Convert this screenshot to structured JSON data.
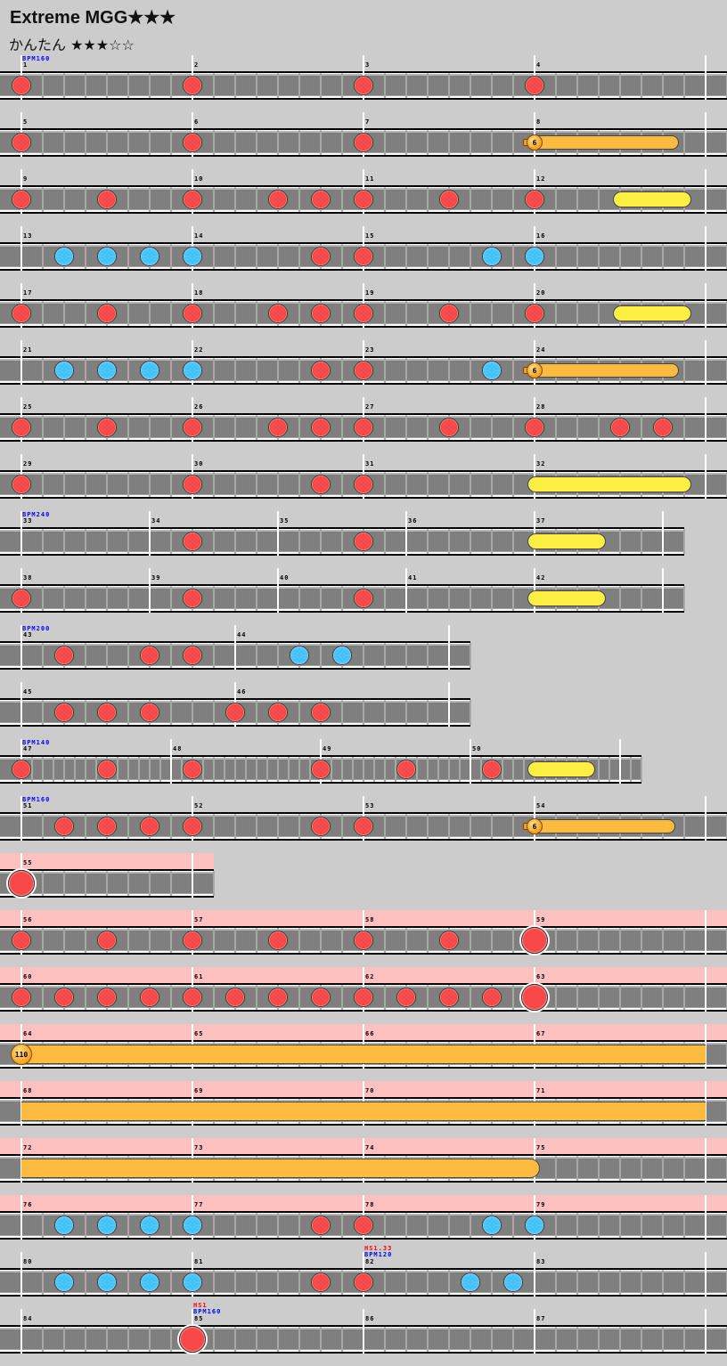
{
  "header": {
    "title": "Extreme MGG★★★",
    "subtitle": "かんたん ★★★☆☆"
  },
  "colors": {
    "background": "#cccccc",
    "gogo": "#ffc0c0",
    "don": "#f84848",
    "ka": "#48c4f8",
    "roll": "#ffee44",
    "balloon": "#ffbb40",
    "bpm_text": "#0000ff",
    "hs_text": "#ff0000"
  },
  "rows": [
    {
      "measures": [
        {
          "n": "1",
          "at": 0,
          "bpm": "BPM160"
        },
        {
          "n": "2",
          "at": 8
        },
        {
          "n": "3",
          "at": 16
        },
        {
          "n": "4",
          "at": 24
        }
      ],
      "end": 32,
      "len": 33,
      "notes": [
        {
          "t": "don",
          "at": 0
        },
        {
          "t": "don",
          "at": 8
        },
        {
          "t": "don",
          "at": 16
        },
        {
          "t": "don",
          "at": 24
        }
      ]
    },
    {
      "measures": [
        {
          "n": "5",
          "at": 0
        },
        {
          "n": "6",
          "at": 8
        },
        {
          "n": "7",
          "at": 16
        },
        {
          "n": "8",
          "at": 24
        }
      ],
      "end": 32,
      "len": 33,
      "notes": [
        {
          "t": "don",
          "at": 0
        },
        {
          "t": "don",
          "at": 8
        },
        {
          "t": "don",
          "at": 16
        },
        {
          "t": "balloon",
          "at": 24,
          "to": 30.75,
          "count": "6"
        }
      ]
    },
    {
      "measures": [
        {
          "n": "9",
          "at": 0
        },
        {
          "n": "10",
          "at": 8
        },
        {
          "n": "11",
          "at": 16
        },
        {
          "n": "12",
          "at": 24
        }
      ],
      "end": 32,
      "len": 33,
      "notes": [
        {
          "t": "don",
          "at": 0
        },
        {
          "t": "don",
          "at": 4
        },
        {
          "t": "don",
          "at": 8
        },
        {
          "t": "don",
          "at": 12
        },
        {
          "t": "don",
          "at": 14
        },
        {
          "t": "don",
          "at": 16
        },
        {
          "t": "don",
          "at": 20
        },
        {
          "t": "don",
          "at": 24
        },
        {
          "t": "roll",
          "at": 28,
          "to": 31
        }
      ]
    },
    {
      "measures": [
        {
          "n": "13",
          "at": 0
        },
        {
          "n": "14",
          "at": 8
        },
        {
          "n": "15",
          "at": 16
        },
        {
          "n": "16",
          "at": 24
        }
      ],
      "end": 32,
      "len": 33,
      "notes": [
        {
          "t": "ka",
          "at": 2
        },
        {
          "t": "ka",
          "at": 4
        },
        {
          "t": "ka",
          "at": 6
        },
        {
          "t": "ka",
          "at": 8
        },
        {
          "t": "don",
          "at": 14
        },
        {
          "t": "don",
          "at": 16
        },
        {
          "t": "ka",
          "at": 22
        },
        {
          "t": "ka",
          "at": 24
        }
      ]
    },
    {
      "measures": [
        {
          "n": "17",
          "at": 0
        },
        {
          "n": "18",
          "at": 8
        },
        {
          "n": "19",
          "at": 16
        },
        {
          "n": "20",
          "at": 24
        }
      ],
      "end": 32,
      "len": 33,
      "notes": [
        {
          "t": "don",
          "at": 0
        },
        {
          "t": "don",
          "at": 4
        },
        {
          "t": "don",
          "at": 8
        },
        {
          "t": "don",
          "at": 12
        },
        {
          "t": "don",
          "at": 14
        },
        {
          "t": "don",
          "at": 16
        },
        {
          "t": "don",
          "at": 20
        },
        {
          "t": "don",
          "at": 24
        },
        {
          "t": "roll",
          "at": 28,
          "to": 31
        }
      ]
    },
    {
      "measures": [
        {
          "n": "21",
          "at": 0
        },
        {
          "n": "22",
          "at": 8
        },
        {
          "n": "23",
          "at": 16
        },
        {
          "n": "24",
          "at": 24
        }
      ],
      "end": 32,
      "len": 33,
      "notes": [
        {
          "t": "ka",
          "at": 2
        },
        {
          "t": "ka",
          "at": 4
        },
        {
          "t": "ka",
          "at": 6
        },
        {
          "t": "ka",
          "at": 8
        },
        {
          "t": "don",
          "at": 14
        },
        {
          "t": "don",
          "at": 16
        },
        {
          "t": "ka",
          "at": 22
        },
        {
          "t": "balloon",
          "at": 24,
          "to": 30.75,
          "count": "6"
        }
      ]
    },
    {
      "measures": [
        {
          "n": "25",
          "at": 0
        },
        {
          "n": "26",
          "at": 8
        },
        {
          "n": "27",
          "at": 16
        },
        {
          "n": "28",
          "at": 24
        }
      ],
      "end": 32,
      "len": 33,
      "notes": [
        {
          "t": "don",
          "at": 0
        },
        {
          "t": "don",
          "at": 4
        },
        {
          "t": "don",
          "at": 8
        },
        {
          "t": "don",
          "at": 12
        },
        {
          "t": "don",
          "at": 14
        },
        {
          "t": "don",
          "at": 16
        },
        {
          "t": "don",
          "at": 20
        },
        {
          "t": "don",
          "at": 24
        },
        {
          "t": "don",
          "at": 28
        },
        {
          "t": "don",
          "at": 30
        }
      ]
    },
    {
      "measures": [
        {
          "n": "29",
          "at": 0
        },
        {
          "n": "30",
          "at": 8
        },
        {
          "n": "31",
          "at": 16
        },
        {
          "n": "32",
          "at": 24
        }
      ],
      "end": 32,
      "len": 33,
      "notes": [
        {
          "t": "don",
          "at": 0
        },
        {
          "t": "don",
          "at": 8
        },
        {
          "t": "don",
          "at": 14
        },
        {
          "t": "don",
          "at": 16
        },
        {
          "t": "roll",
          "at": 24,
          "to": 31
        }
      ]
    },
    {
      "measures": [
        {
          "n": "33",
          "at": 0,
          "bpm": "BPM240"
        },
        {
          "n": "34",
          "at": 6
        },
        {
          "n": "35",
          "at": 12
        },
        {
          "n": "36",
          "at": 18
        },
        {
          "n": "37",
          "at": 24
        }
      ],
      "end": 30,
      "len": 31,
      "notes": [
        {
          "t": "don",
          "at": 8
        },
        {
          "t": "don",
          "at": 16
        },
        {
          "t": "roll",
          "at": 24,
          "to": 27
        }
      ]
    },
    {
      "measures": [
        {
          "n": "38",
          "at": 0
        },
        {
          "n": "39",
          "at": 6
        },
        {
          "n": "40",
          "at": 12
        },
        {
          "n": "41",
          "at": 18
        },
        {
          "n": "42",
          "at": 24
        }
      ],
      "end": 30,
      "len": 31,
      "notes": [
        {
          "t": "don",
          "at": 0
        },
        {
          "t": "don",
          "at": 8
        },
        {
          "t": "don",
          "at": 16
        },
        {
          "t": "roll",
          "at": 24,
          "to": 27
        }
      ]
    },
    {
      "measures": [
        {
          "n": "43",
          "at": 0,
          "bpm": "BPM200"
        },
        {
          "n": "44",
          "at": 10
        }
      ],
      "end": 20,
      "len": 21,
      "notes": [
        {
          "t": "don",
          "at": 2
        },
        {
          "t": "don",
          "at": 6
        },
        {
          "t": "don",
          "at": 8
        },
        {
          "t": "ka",
          "at": 13
        },
        {
          "t": "ka",
          "at": 15
        }
      ]
    },
    {
      "measures": [
        {
          "n": "45",
          "at": 0
        },
        {
          "n": "46",
          "at": 10
        }
      ],
      "end": 20,
      "len": 21,
      "notes": [
        {
          "t": "don",
          "at": 2
        },
        {
          "t": "don",
          "at": 4
        },
        {
          "t": "don",
          "at": 6
        },
        {
          "t": "don",
          "at": 10
        },
        {
          "t": "don",
          "at": 12
        },
        {
          "t": "don",
          "at": 14
        }
      ]
    },
    {
      "measures": [
        {
          "n": "47",
          "at": 0,
          "bpm": "BPM140"
        },
        {
          "n": "48",
          "at": 7
        },
        {
          "n": "49",
          "at": 14
        },
        {
          "n": "50",
          "at": 21
        }
      ],
      "end": 28,
      "len": 29,
      "div": 2,
      "notes": [
        {
          "t": "don",
          "at": 0
        },
        {
          "t": "don",
          "at": 4
        },
        {
          "t": "don",
          "at": 8
        },
        {
          "t": "don",
          "at": 14
        },
        {
          "t": "don",
          "at": 18
        },
        {
          "t": "don",
          "at": 22
        },
        {
          "t": "roll",
          "at": 24,
          "to": 26.5
        }
      ]
    },
    {
      "measures": [
        {
          "n": "51",
          "at": 0,
          "bpm": "BPM160"
        },
        {
          "n": "52",
          "at": 8
        },
        {
          "n": "53",
          "at": 16
        },
        {
          "n": "54",
          "at": 24
        }
      ],
      "end": 32,
      "len": 33,
      "notes": [
        {
          "t": "don",
          "at": 2
        },
        {
          "t": "don",
          "at": 4
        },
        {
          "t": "don",
          "at": 6
        },
        {
          "t": "don",
          "at": 8
        },
        {
          "t": "don",
          "at": 14
        },
        {
          "t": "don",
          "at": 16
        },
        {
          "t": "balloon",
          "at": 24,
          "to": 30.6,
          "count": "6"
        }
      ]
    },
    {
      "gogo": true,
      "measures": [
        {
          "n": "55",
          "at": 0
        }
      ],
      "end": 8,
      "len": 9,
      "notes": [
        {
          "t": "DON",
          "at": 0
        }
      ]
    },
    {
      "gogo": true,
      "measures": [
        {
          "n": "56",
          "at": 0
        },
        {
          "n": "57",
          "at": 8
        },
        {
          "n": "58",
          "at": 16
        },
        {
          "n": "59",
          "at": 24
        }
      ],
      "end": 32,
      "len": 33,
      "notes": [
        {
          "t": "don",
          "at": 0
        },
        {
          "t": "don",
          "at": 4
        },
        {
          "t": "don",
          "at": 8
        },
        {
          "t": "don",
          "at": 12
        },
        {
          "t": "don",
          "at": 16
        },
        {
          "t": "don",
          "at": 20
        },
        {
          "t": "DON",
          "at": 24
        }
      ]
    },
    {
      "gogo": true,
      "measures": [
        {
          "n": "60",
          "at": 0
        },
        {
          "n": "61",
          "at": 8
        },
        {
          "n": "62",
          "at": 16
        },
        {
          "n": "63",
          "at": 24
        }
      ],
      "end": 32,
      "len": 33,
      "notes": [
        {
          "t": "don",
          "at": 0
        },
        {
          "t": "don",
          "at": 2
        },
        {
          "t": "don",
          "at": 4
        },
        {
          "t": "don",
          "at": 6
        },
        {
          "t": "don",
          "at": 8
        },
        {
          "t": "don",
          "at": 10
        },
        {
          "t": "don",
          "at": 12
        },
        {
          "t": "don",
          "at": 14
        },
        {
          "t": "don",
          "at": 16
        },
        {
          "t": "don",
          "at": 18
        },
        {
          "t": "don",
          "at": 20
        },
        {
          "t": "don",
          "at": 22
        },
        {
          "t": "DON",
          "at": 24
        }
      ]
    },
    {
      "gogo": true,
      "measures": [
        {
          "n": "64",
          "at": 0
        },
        {
          "n": "65",
          "at": 8
        },
        {
          "n": "66",
          "at": 16
        },
        {
          "n": "67",
          "at": 24
        }
      ],
      "end": 32,
      "len": 33,
      "notes": [
        {
          "t": "BALLOON",
          "at": 0,
          "to": 32,
          "count": "110",
          "open_end": true
        }
      ]
    },
    {
      "gogo": true,
      "measures": [
        {
          "n": "68",
          "at": 0
        },
        {
          "n": "69",
          "at": 8
        },
        {
          "n": "70",
          "at": 16
        },
        {
          "n": "71",
          "at": 24
        }
      ],
      "end": 32,
      "len": 33,
      "notes": [
        {
          "t": "BALLOON_BODY",
          "at": 0,
          "to": 32,
          "open_end": true
        }
      ]
    },
    {
      "gogo": true,
      "measures": [
        {
          "n": "72",
          "at": 0
        },
        {
          "n": "73",
          "at": 8
        },
        {
          "n": "74",
          "at": 16
        },
        {
          "n": "75",
          "at": 24
        }
      ],
      "end": 32,
      "len": 33,
      "notes": [
        {
          "t": "BALLOON_BODY",
          "at": 0,
          "to": 24.25
        }
      ]
    },
    {
      "gogo": true,
      "measures": [
        {
          "n": "76",
          "at": 0
        },
        {
          "n": "77",
          "at": 8
        },
        {
          "n": "78",
          "at": 16
        },
        {
          "n": "79",
          "at": 24
        }
      ],
      "end": 32,
      "len": 33,
      "notes": [
        {
          "t": "ka",
          "at": 2
        },
        {
          "t": "ka",
          "at": 4
        },
        {
          "t": "ka",
          "at": 6
        },
        {
          "t": "ka",
          "at": 8
        },
        {
          "t": "don",
          "at": 14
        },
        {
          "t": "don",
          "at": 16
        },
        {
          "t": "ka",
          "at": 22
        },
        {
          "t": "ka",
          "at": 24
        }
      ]
    },
    {
      "measures": [
        {
          "n": "80",
          "at": 0
        },
        {
          "n": "81",
          "at": 8
        },
        {
          "n": "82",
          "at": 16,
          "bpm": "BPM120",
          "hs": "HS1.33"
        },
        {
          "n": "83",
          "at": 24
        }
      ],
      "end": 32,
      "len": 33,
      "notes": [
        {
          "t": "ka",
          "at": 2
        },
        {
          "t": "ka",
          "at": 4
        },
        {
          "t": "ka",
          "at": 6
        },
        {
          "t": "ka",
          "at": 8
        },
        {
          "t": "don",
          "at": 14
        },
        {
          "t": "don",
          "at": 16
        },
        {
          "t": "ka",
          "at": 21
        },
        {
          "t": "ka",
          "at": 23
        }
      ]
    },
    {
      "measures": [
        {
          "n": "84",
          "at": 0
        },
        {
          "n": "85",
          "at": 8,
          "bpm": "BPM160",
          "hs": "HS1"
        },
        {
          "n": "86",
          "at": 16
        },
        {
          "n": "87",
          "at": 24
        }
      ],
      "end": 32,
      "len": 33,
      "notes": [
        {
          "t": "DON",
          "at": 8
        }
      ]
    }
  ]
}
